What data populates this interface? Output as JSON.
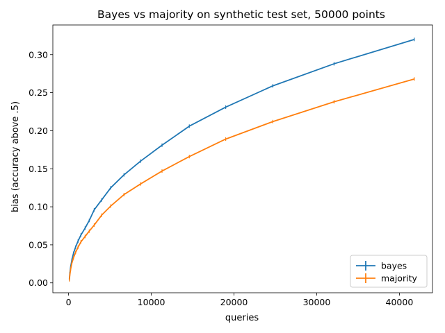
{
  "chart_data": {
    "type": "line",
    "title": "Bayes vs majority on synthetic test set, 50000 points",
    "xlabel": "queries",
    "ylabel": "bias (accuracy above .5)",
    "xlim": [
      -1900,
      44000
    ],
    "ylim": [
      -0.013,
      0.339
    ],
    "xticks": [
      0,
      10000,
      20000,
      30000,
      40000
    ],
    "xtick_labels": [
      "0",
      "10000",
      "20000",
      "30000",
      "40000"
    ],
    "yticks": [
      0.0,
      0.05,
      0.1,
      0.15,
      0.2,
      0.25,
      0.3
    ],
    "ytick_labels": [
      "0.00",
      "0.05",
      "0.10",
      "0.15",
      "0.20",
      "0.25",
      "0.30"
    ],
    "grid": false,
    "legend": {
      "position": "lower-right",
      "entries": [
        "bayes",
        "majority"
      ]
    },
    "series": [
      {
        "name": "bayes",
        "color": "#1f77b4",
        "x": [
          100,
          150,
          250,
          400,
          600,
          850,
          1150,
          1500,
          2000,
          2500,
          3100,
          4000,
          5100,
          6700,
          8700,
          11300,
          14600,
          19000,
          24700,
          32100,
          41800
        ],
        "y": [
          0.005,
          0.012,
          0.021,
          0.03,
          0.039,
          0.047,
          0.055,
          0.063,
          0.072,
          0.082,
          0.096,
          0.109,
          0.125,
          0.142,
          0.16,
          0.181,
          0.206,
          0.231,
          0.259,
          0.288,
          0.32
        ]
      },
      {
        "name": "majority",
        "color": "#ff7f0e",
        "x": [
          100,
          150,
          250,
          400,
          600,
          850,
          1150,
          1500,
          2000,
          2500,
          3100,
          4000,
          5100,
          6700,
          8700,
          11300,
          14600,
          19000,
          24700,
          32100,
          41800
        ],
        "y": [
          0.004,
          0.01,
          0.018,
          0.026,
          0.033,
          0.04,
          0.047,
          0.054,
          0.061,
          0.068,
          0.076,
          0.089,
          0.101,
          0.116,
          0.13,
          0.147,
          0.166,
          0.189,
          0.212,
          0.238,
          0.268
        ]
      }
    ]
  }
}
